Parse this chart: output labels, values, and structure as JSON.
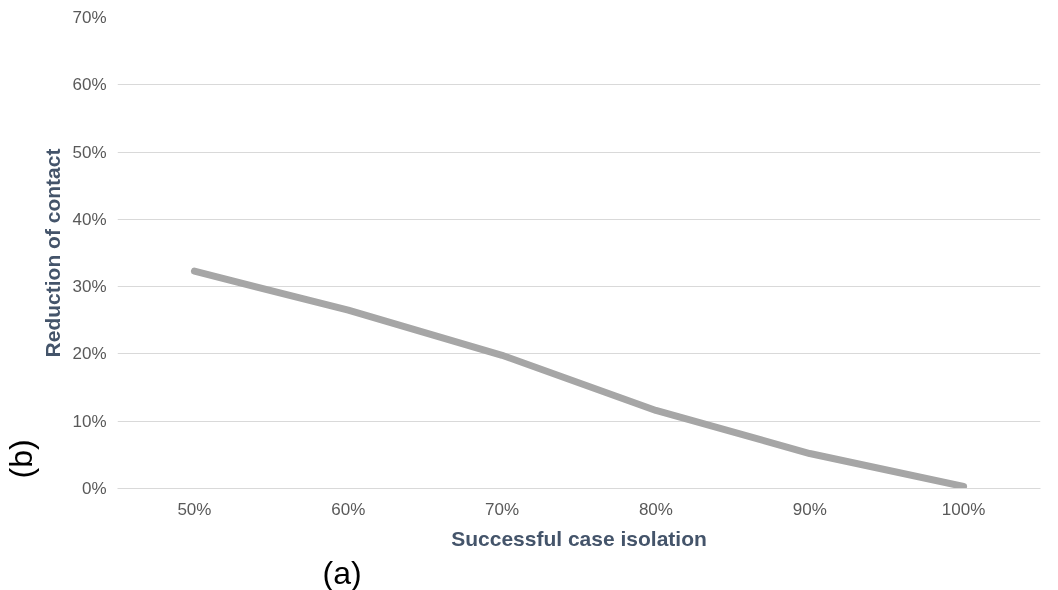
{
  "chart_data": {
    "type": "line",
    "xlabel": "Successful case isolation",
    "ylabel": "Reduction of contact",
    "categories": [
      "50%",
      "60%",
      "70%",
      "80%",
      "90%",
      "100%"
    ],
    "series": [
      {
        "color": "#a6a6a6",
        "values": [
          0.323,
          0.265,
          0.198,
          0.116,
          0.052,
          0.003
        ]
      }
    ],
    "ylim": [
      0,
      0.7
    ],
    "yticks": [
      {
        "value": 0,
        "label": "0%"
      },
      {
        "value": 0.1,
        "label": "10%"
      },
      {
        "value": 0.2,
        "label": "20%"
      },
      {
        "value": 0.3,
        "label": "30%"
      },
      {
        "value": 0.4,
        "label": "40%"
      },
      {
        "value": 0.5,
        "label": "50%"
      },
      {
        "value": 0.6,
        "label": "60%"
      },
      {
        "value": 0.7,
        "label": "70%"
      }
    ],
    "grid": "y",
    "marker": "none",
    "line_style": "solid",
    "annotations": [
      "(a)",
      "(b)"
    ]
  }
}
